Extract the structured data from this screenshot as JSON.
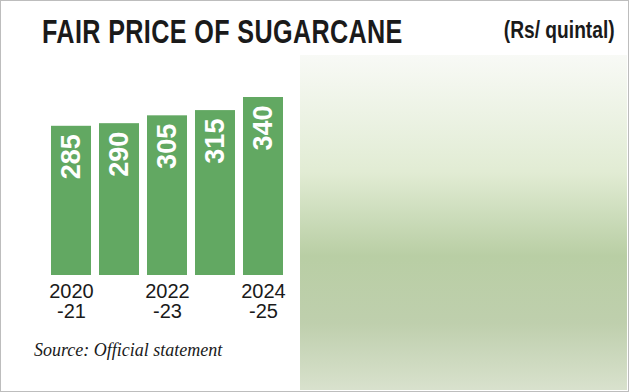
{
  "chart_data": {
    "type": "bar",
    "title": "FAIR PRICE OF SUGARCANE",
    "subtitle": "(Rs/ quintal)",
    "source": "Source: Official statement",
    "categories": [
      "2020\n-21",
      null,
      "2022\n-23",
      null,
      "2024\n-25"
    ],
    "values": [
      285,
      290,
      305,
      315,
      340
    ],
    "color": "#62a862",
    "ylim": [
      0,
      340
    ],
    "data_labels": true,
    "tick_labels": "x",
    "grid": false
  }
}
